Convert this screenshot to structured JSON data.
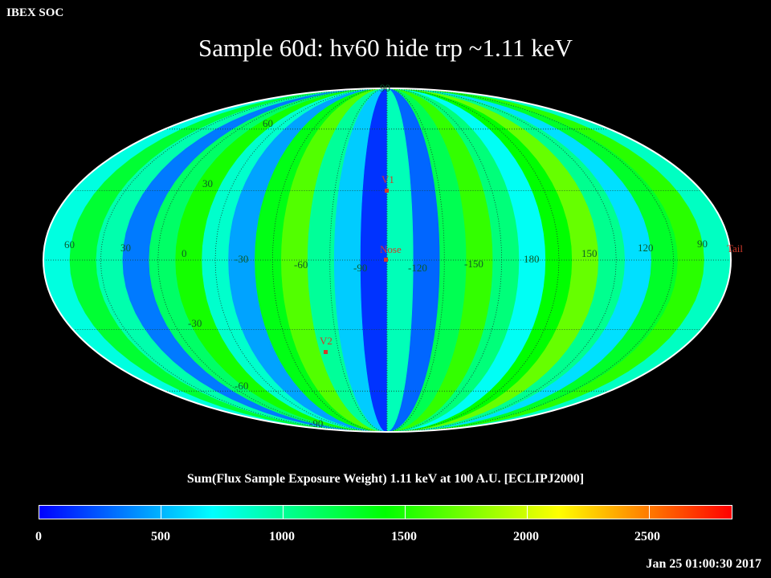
{
  "header": {
    "app_label": "IBEX SOC",
    "title": "Sample 60d: hv60 hide trp ~1.11 keV"
  },
  "map": {
    "projection": "mollweide",
    "grid_labels": {
      "longitude": [
        "60",
        "30",
        "0",
        "-30",
        "-60",
        "-90",
        "-120",
        "-150",
        "180",
        "150",
        "120",
        "90"
      ],
      "latitude": [
        "90",
        "60",
        "30",
        "-30",
        "-60",
        "-90"
      ]
    },
    "markers": [
      {
        "label": "V1",
        "lon": -105,
        "lat": 35
      },
      {
        "label": "Nose",
        "lon": -105,
        "lat": 0
      },
      {
        "label": "V2",
        "lon": -75,
        "lat": -32
      },
      {
        "label": "Tail",
        "lon": 75,
        "lat": 0
      }
    ]
  },
  "colorbar": {
    "label": "Sum(Flux Sample Exposure Weight)  1.11 keV at 100 A.U. [ECLIPJ2000]",
    "ticks": [
      "0",
      "500",
      "1000",
      "1500",
      "2000",
      "2500"
    ],
    "range": [
      0,
      2850
    ],
    "colors": [
      "#0000ff",
      "#00ffff",
      "#00ff00",
      "#ffff00",
      "#ff0000"
    ]
  },
  "footer": {
    "timestamp": "Jan 25 01:00:30 2017"
  }
}
